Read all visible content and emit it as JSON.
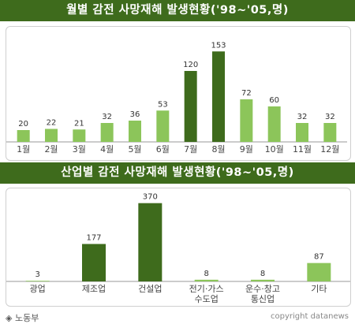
{
  "colors": {
    "header": "#3e6b1c",
    "light_bar": "#8cc55a",
    "dark_bar": "#3e6b1c",
    "axis": "#999999"
  },
  "footer": {
    "source": "◈ 노동부",
    "copyright": "copyright datanews"
  },
  "chart_data": [
    {
      "type": "bar",
      "title": "월별 감전 사망재해 발생현황('98~'05,명)",
      "categories": [
        "1월",
        "2월",
        "3월",
        "4월",
        "5월",
        "6월",
        "7월",
        "8월",
        "9월",
        "10월",
        "11월",
        "12월"
      ],
      "values": [
        20,
        22,
        21,
        32,
        36,
        53,
        120,
        153,
        72,
        60,
        32,
        32
      ],
      "highlight": [
        false,
        false,
        false,
        false,
        false,
        false,
        true,
        true,
        false,
        false,
        false,
        false
      ],
      "ylim": [
        0,
        160
      ]
    },
    {
      "type": "bar",
      "title": "산업별 감전 사망재해 발생현황('98~'05,명)",
      "categories": [
        "광업",
        "제조업",
        "건설업",
        "전기·가스\n수도업",
        "운수·창고\n통신업",
        "기타"
      ],
      "values": [
        3,
        177,
        370,
        8,
        8,
        87
      ],
      "highlight": [
        false,
        true,
        true,
        false,
        false,
        false
      ],
      "ylim": [
        0,
        380
      ]
    }
  ]
}
